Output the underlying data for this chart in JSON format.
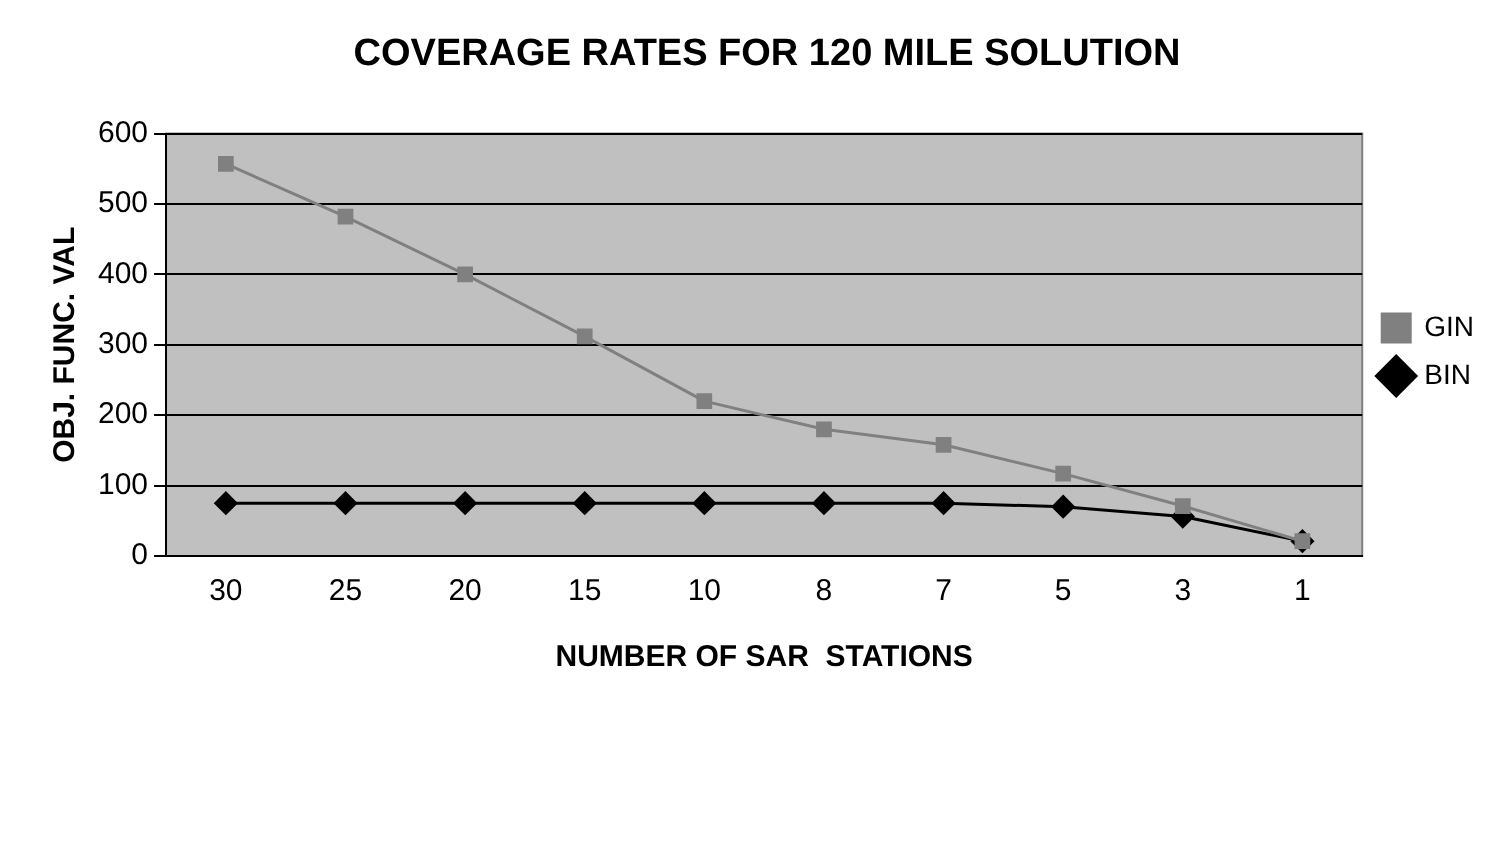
{
  "chart_data": {
    "type": "line",
    "title": "COVERAGE RATES FOR 120 MILE SOLUTION",
    "xlabel": "NUMBER OF SAR  STATIONS",
    "ylabel": "OBJ. FUNC. VAL",
    "categories": [
      "30",
      "25",
      "20",
      "15",
      "10",
      "8",
      "7",
      "5",
      "3",
      "1"
    ],
    "series": [
      {
        "name": "BIN",
        "color": "#000000",
        "marker": "diamond",
        "values": [
          75,
          75,
          75,
          75,
          75,
          75,
          75,
          70,
          56,
          21
        ]
      },
      {
        "name": "GIN",
        "color": "#808080",
        "marker": "square",
        "values": [
          557,
          482,
          400,
          312,
          220,
          180,
          158,
          117,
          71,
          21
        ]
      }
    ],
    "ylim": [
      0,
      600
    ],
    "yticks": [
      0,
      100,
      200,
      300,
      400,
      500,
      600
    ],
    "grid": "y",
    "legend": "right",
    "line_style": "solid"
  }
}
